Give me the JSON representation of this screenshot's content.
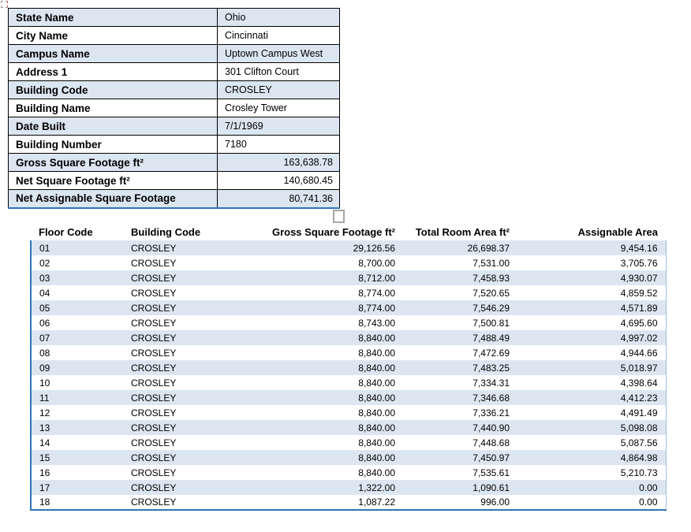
{
  "colors": {
    "band_fill": "#DCE6F1",
    "accent_border": "#2E75B6",
    "light_border": "#9DC3E6",
    "grid_border": "#000000",
    "handle_border": "#A6A6A6"
  },
  "icons": {
    "object_anchor": "object-anchor-icon",
    "floating_square": "unchecked-checkbox"
  },
  "info_table": {
    "rows": [
      {
        "label": "State Name",
        "value": "Ohio",
        "numeric": false
      },
      {
        "label": "City Name",
        "value": "Cincinnati",
        "numeric": false
      },
      {
        "label": "Campus Name",
        "value": "Uptown Campus West",
        "numeric": false
      },
      {
        "label": "Address 1",
        "value": "301 Clifton Court",
        "numeric": false
      },
      {
        "label": "Building Code",
        "value": "CROSLEY",
        "numeric": false
      },
      {
        "label": "Building Name",
        "value": "Crosley Tower",
        "numeric": false
      },
      {
        "label": "Date Built",
        "value": "7/1/1969",
        "numeric": false
      },
      {
        "label": "Building Number",
        "value": "7180",
        "numeric": false
      },
      {
        "label": "Gross Square Footage ft²",
        "value": "163,638.78",
        "numeric": true
      },
      {
        "label": "Net Square Footage ft²",
        "value": "140,680.45",
        "numeric": true
      },
      {
        "label": "Net Assignable Square Footage",
        "value": "80,741.36",
        "numeric": true
      }
    ]
  },
  "floor_table": {
    "headers": [
      "Floor Code",
      "Building Code",
      "Gross Square Footage ft²",
      "Total Room Area ft²",
      "Assignable Area"
    ],
    "rows": [
      [
        "01",
        "CROSLEY",
        "29,126.56",
        "26,698.37",
        "9,454.16"
      ],
      [
        "02",
        "CROSLEY",
        "8,700.00",
        "7,531.00",
        "3,705.76"
      ],
      [
        "03",
        "CROSLEY",
        "8,712.00",
        "7,458.93",
        "4,930.07"
      ],
      [
        "04",
        "CROSLEY",
        "8,774.00",
        "7,520.65",
        "4,859.52"
      ],
      [
        "05",
        "CROSLEY",
        "8,774.00",
        "7,546.29",
        "4,571.89"
      ],
      [
        "06",
        "CROSLEY",
        "8,743.00",
        "7,500.81",
        "4,695.60"
      ],
      [
        "07",
        "CROSLEY",
        "8,840.00",
        "7,488.49",
        "4,997.02"
      ],
      [
        "08",
        "CROSLEY",
        "8,840.00",
        "7,472.69",
        "4,944.66"
      ],
      [
        "09",
        "CROSLEY",
        "8,840.00",
        "7,483.25",
        "5,018.97"
      ],
      [
        "10",
        "CROSLEY",
        "8,840.00",
        "7,334.31",
        "4,398.64"
      ],
      [
        "11",
        "CROSLEY",
        "8,840.00",
        "7,346.68",
        "4,412.23"
      ],
      [
        "12",
        "CROSLEY",
        "8,840.00",
        "7,336.21",
        "4,491.49"
      ],
      [
        "13",
        "CROSLEY",
        "8,840.00",
        "7,440.90",
        "5,098.08"
      ],
      [
        "14",
        "CROSLEY",
        "8,840.00",
        "7,448.68",
        "5,087.56"
      ],
      [
        "15",
        "CROSLEY",
        "8,840.00",
        "7,450.97",
        "4,864.98"
      ],
      [
        "16",
        "CROSLEY",
        "8,840.00",
        "7,535.61",
        "5,210.73"
      ],
      [
        "17",
        "CROSLEY",
        "1,322.00",
        "1,090.61",
        "0.00"
      ],
      [
        "18",
        "CROSLEY",
        "1,087.22",
        "996.00",
        "0.00"
      ]
    ]
  }
}
